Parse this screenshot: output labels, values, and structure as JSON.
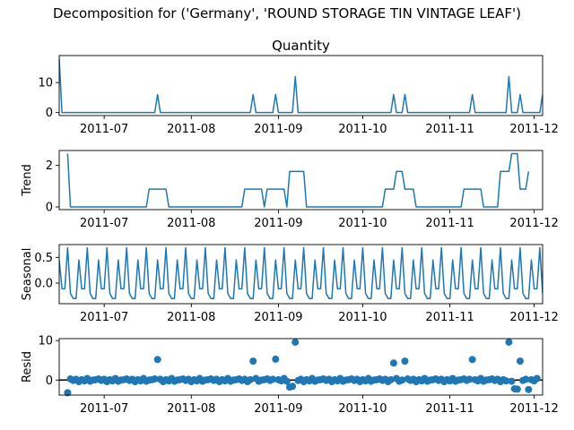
{
  "figure": {
    "suptitle": "Decomposition for ('Germany', 'ROUND STORAGE TIN VINTAGE LEAF')"
  },
  "chart_data": [
    {
      "type": "line",
      "title": "Quantity",
      "ylabel": "",
      "xlim": [
        "2011-06-15",
        "2011-12-04"
      ],
      "ylim": [
        -1,
        19
      ],
      "yticks": [
        0,
        10
      ],
      "xticks": [
        "2011-07",
        "2011-08",
        "2011-09",
        "2011-10",
        "2011-11",
        "2011-12"
      ],
      "grid": false,
      "series": [
        {
          "color": "#1f77b4",
          "points": [
            [
              "2011-06-15",
              18
            ],
            [
              "2011-06-16",
              0
            ],
            [
              "2011-07-19",
              0
            ],
            [
              "2011-07-20",
              6
            ],
            [
              "2011-07-21",
              0
            ],
            [
              "2011-08-22",
              0
            ],
            [
              "2011-08-23",
              6
            ],
            [
              "2011-08-24",
              0
            ],
            [
              "2011-08-30",
              0
            ],
            [
              "2011-08-31",
              6
            ],
            [
              "2011-09-01",
              0
            ],
            [
              "2011-09-06",
              0
            ],
            [
              "2011-09-07",
              12
            ],
            [
              "2011-09-08",
              0
            ],
            [
              "2011-10-11",
              0
            ],
            [
              "2011-10-12",
              6
            ],
            [
              "2011-10-13",
              0
            ],
            [
              "2011-10-15",
              0
            ],
            [
              "2011-10-16",
              6
            ],
            [
              "2011-10-17",
              0
            ],
            [
              "2011-11-08",
              0
            ],
            [
              "2011-11-09",
              6
            ],
            [
              "2011-11-10",
              0
            ],
            [
              "2011-11-21",
              0
            ],
            [
              "2011-11-22",
              12
            ],
            [
              "2011-11-23",
              0
            ],
            [
              "2011-11-25",
              0
            ],
            [
              "2011-11-26",
              6
            ],
            [
              "2011-11-27",
              0
            ],
            [
              "2011-12-03",
              0
            ],
            [
              "2011-12-04",
              6
            ]
          ]
        }
      ]
    },
    {
      "type": "line",
      "title": "",
      "ylabel": "Trend",
      "xlim": [
        "2011-06-15",
        "2011-12-04"
      ],
      "ylim": [
        -0.13,
        2.72
      ],
      "yticks": [
        0,
        2
      ],
      "xticks": [
        "2011-07",
        "2011-08",
        "2011-09",
        "2011-10",
        "2011-11",
        "2011-12"
      ],
      "grid": false,
      "series": [
        {
          "color": "#1f77b4",
          "points": [
            [
              "2011-06-18",
              2.57
            ],
            [
              "2011-06-19",
              0
            ],
            [
              "2011-07-16",
              0
            ],
            [
              "2011-07-17",
              0.86
            ],
            [
              "2011-07-23",
              0.86
            ],
            [
              "2011-07-24",
              0
            ],
            [
              "2011-08-19",
              0
            ],
            [
              "2011-08-20",
              0.86
            ],
            [
              "2011-08-26",
              0.86
            ],
            [
              "2011-08-27",
              0
            ],
            [
              "2011-08-28",
              0.86
            ],
            [
              "2011-09-03",
              0.86
            ],
            [
              "2011-09-04",
              0
            ],
            [
              "2011-09-05",
              1.71
            ],
            [
              "2011-09-10",
              1.71
            ],
            [
              "2011-09-11",
              0
            ],
            [
              "2011-10-08",
              0
            ],
            [
              "2011-10-09",
              0.86
            ],
            [
              "2011-10-12",
              0.86
            ],
            [
              "2011-10-13",
              1.71
            ],
            [
              "2011-10-15",
              1.71
            ],
            [
              "2011-10-16",
              0.86
            ],
            [
              "2011-10-19",
              0.86
            ],
            [
              "2011-10-20",
              0
            ],
            [
              "2011-11-05",
              0
            ],
            [
              "2011-11-06",
              0.86
            ],
            [
              "2011-11-12",
              0.86
            ],
            [
              "2011-11-13",
              0
            ],
            [
              "2011-11-18",
              0
            ],
            [
              "2011-11-19",
              1.71
            ],
            [
              "2011-11-22",
              1.71
            ],
            [
              "2011-11-23",
              2.57
            ],
            [
              "2011-11-25",
              2.57
            ],
            [
              "2011-11-26",
              0.86
            ],
            [
              "2011-11-28",
              0.86
            ],
            [
              "2011-11-29",
              1.71
            ]
          ]
        }
      ]
    },
    {
      "type": "line",
      "title": "",
      "ylabel": "Seasonal",
      "xlim": [
        "2011-06-15",
        "2011-12-04"
      ],
      "ylim": [
        -0.4,
        0.75
      ],
      "yticks": [
        0.0,
        0.5
      ],
      "xticks": [
        "2011-07",
        "2011-08",
        "2011-09",
        "2011-10",
        "2011-11",
        "2011-12"
      ],
      "grid": false,
      "period": 7,
      "start": "2011-06-15",
      "pattern": [
        0.45,
        -0.11,
        -0.11,
        0.69,
        -0.2,
        -0.3,
        -0.3
      ],
      "series": [
        {
          "color": "#1f77b4"
        }
      ]
    },
    {
      "type": "scatter",
      "title": "",
      "ylabel": "Resid",
      "xlim": [
        "2011-06-15",
        "2011-12-04"
      ],
      "ylim": [
        -3.8,
        10.5
      ],
      "yticks": [
        0,
        10
      ],
      "xticks": [
        "2011-07",
        "2011-08",
        "2011-09",
        "2011-10",
        "2011-11",
        "2011-12"
      ],
      "grid": false,
      "baseline": 0,
      "series": [
        {
          "color": "#1f77b4",
          "start": "2011-06-18",
          "base": [
            0.1,
            0.3,
            -0.1,
            0.2,
            -0.4,
            0.1,
            -0.2,
            0.4,
            -0.3,
            0.0
          ],
          "outliers": [
            [
              "2011-06-18",
              -3.2
            ],
            [
              "2011-07-20",
              5.2
            ],
            [
              "2011-08-23",
              4.8
            ],
            [
              "2011-08-31",
              5.3
            ],
            [
              "2011-09-07",
              9.6
            ],
            [
              "2011-10-12",
              4.3
            ],
            [
              "2011-10-16",
              4.8
            ],
            [
              "2011-11-09",
              5.2
            ],
            [
              "2011-11-22",
              9.6
            ],
            [
              "2011-11-26",
              4.8
            ],
            [
              "2011-11-24",
              -2.2
            ],
            [
              "2011-11-25",
              -2.3
            ],
            [
              "2011-11-29",
              -2.4
            ],
            [
              "2011-09-05",
              -1.8
            ],
            [
              "2011-09-06",
              -1.6
            ]
          ]
        }
      ]
    }
  ]
}
